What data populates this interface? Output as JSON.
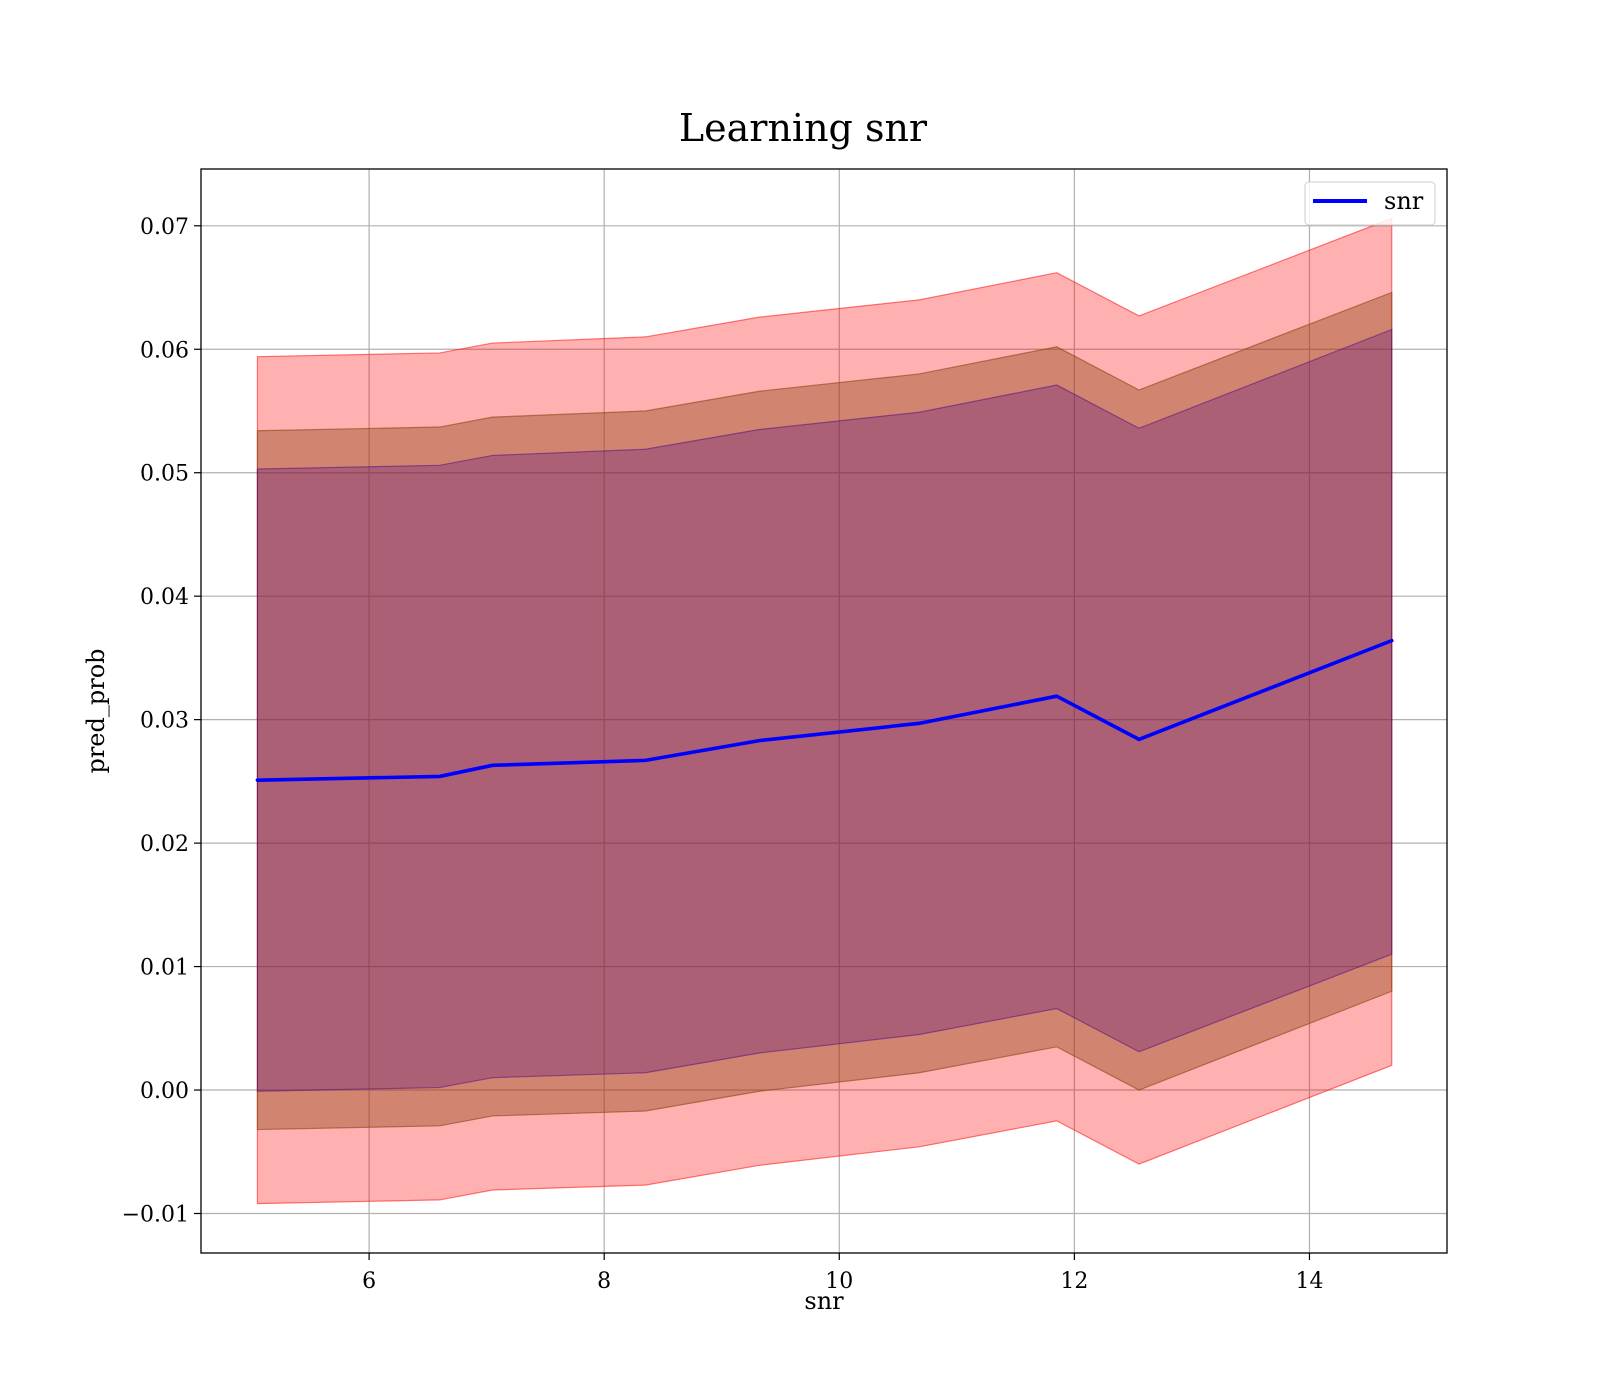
{
  "chart_data": {
    "type": "line",
    "title": "Learning snr",
    "xlabel": "snr",
    "ylabel": "pred_prob",
    "xlim": [
      4.57,
      15.17
    ],
    "ylim": [
      -0.0132,
      0.0746
    ],
    "xticks": [
      6,
      8,
      10,
      12,
      14
    ],
    "yticks": [
      -0.01,
      0.0,
      0.01,
      0.02,
      0.03,
      0.04,
      0.05,
      0.06,
      0.07
    ],
    "ytick_labels": [
      "−0.01",
      "0.00",
      "0.01",
      "0.02",
      "0.03",
      "0.04",
      "0.05",
      "0.06",
      "0.07"
    ],
    "grid": true,
    "legend": {
      "position": "top-right",
      "entries": [
        "snr"
      ]
    },
    "x": [
      5.05,
      6.6,
      7.05,
      8.35,
      9.32,
      10.68,
      11.85,
      12.55,
      14.7
    ],
    "series": [
      {
        "name": "snr",
        "color": "#0000ff",
        "values": [
          0.0251,
          0.0254,
          0.0263,
          0.0267,
          0.0283,
          0.0297,
          0.0319,
          0.0284,
          0.0364
        ]
      }
    ],
    "bands": [
      {
        "color": "#ff0000",
        "opacity": 0.31,
        "upper": [
          0.0594,
          0.0597,
          0.0605,
          0.061,
          0.0626,
          0.064,
          0.0662,
          0.0627,
          0.0706
        ],
        "lower": [
          -0.0092,
          -0.0089,
          -0.0081,
          -0.0077,
          -0.0061,
          -0.0046,
          -0.0025,
          -0.006,
          0.002
        ]
      },
      {
        "color": "#8b4513",
        "opacity": 0.4,
        "upper": [
          0.0534,
          0.0537,
          0.0545,
          0.055,
          0.0566,
          0.058,
          0.0602,
          0.0567,
          0.0646
        ],
        "lower": [
          -0.0032,
          -0.0029,
          -0.0021,
          -0.0017,
          -0.0001,
          0.0014,
          0.0035,
          0.0,
          0.008
        ]
      },
      {
        "color": "#4b0082",
        "opacity": 0.28,
        "upper": [
          0.0503,
          0.0506,
          0.0514,
          0.0519,
          0.0535,
          0.0549,
          0.0571,
          0.0536,
          0.0616
        ],
        "lower": [
          -0.0001,
          0.0002,
          0.001,
          0.0014,
          0.003,
          0.0045,
          0.0066,
          0.0031,
          0.011
        ]
      }
    ]
  }
}
